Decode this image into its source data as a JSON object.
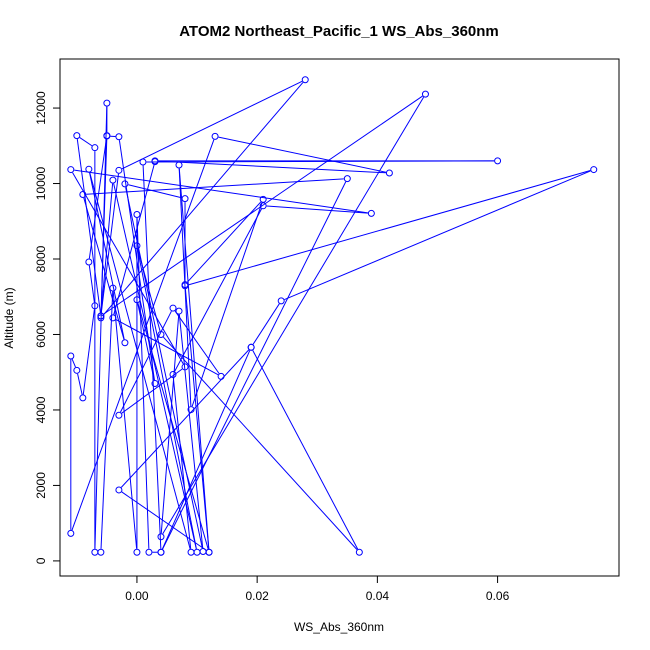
{
  "chart_data": {
    "type": "line",
    "title": "ATOM2 Northeast_Pacific_1 WS_Abs_360nm",
    "xlabel": "WS_Abs_360nm",
    "ylabel": "Altitude (m)",
    "xlim": [
      -0.0128,
      0.0802
    ],
    "ylim": [
      -400,
      13300
    ],
    "x_ticks": [
      0.0,
      0.02,
      0.04,
      0.06
    ],
    "x_tick_labels": [
      "0.00",
      "0.02",
      "0.04",
      "0.06"
    ],
    "y_ticks": [
      0,
      2000,
      4000,
      6000,
      8000,
      10000,
      12000
    ],
    "y_tick_labels": [
      "0",
      "2000",
      "4000",
      "6000",
      "8000",
      "10000",
      "12000"
    ],
    "grid": false,
    "series": [
      {
        "color": "#0000ff",
        "marker": "open-circle",
        "points": [
          {
            "x": -0.006,
            "y": 230
          },
          {
            "x": -0.004,
            "y": 7230
          },
          {
            "x": 0.0,
            "y": 230
          },
          {
            "x": 0.0,
            "y": 9180
          },
          {
            "x": 0.002,
            "y": 230
          },
          {
            "x": 0.004,
            "y": 230
          },
          {
            "x": 0.001,
            "y": 10570
          },
          {
            "x": 0.06,
            "y": 10600
          },
          {
            "x": 0.003,
            "y": 10600
          },
          {
            "x": 0.042,
            "y": 10280
          },
          {
            "x": 0.013,
            "y": 11250
          },
          {
            "x": -0.011,
            "y": 730
          },
          {
            "x": -0.011,
            "y": 5430
          },
          {
            "x": -0.01,
            "y": 5050
          },
          {
            "x": -0.009,
            "y": 4320
          },
          {
            "x": -0.007,
            "y": 6760
          },
          {
            "x": -0.008,
            "y": 7920
          },
          {
            "x": -0.005,
            "y": 11270
          },
          {
            "x": -0.005,
            "y": 12130
          },
          {
            "x": -0.007,
            "y": 230
          },
          {
            "x": -0.007,
            "y": 10950
          },
          {
            "x": -0.01,
            "y": 11270
          },
          {
            "x": -0.006,
            "y": 6490
          },
          {
            "x": -0.003,
            "y": 10350
          },
          {
            "x": 0.028,
            "y": 12750
          },
          {
            "x": -0.006,
            "y": 6440
          },
          {
            "x": -0.005,
            "y": 11260
          },
          {
            "x": -0.003,
            "y": 11240
          },
          {
            "x": 0.003,
            "y": 4700
          },
          {
            "x": 0.0,
            "y": 6920
          },
          {
            "x": 0.012,
            "y": 230
          },
          {
            "x": 0.008,
            "y": 7320
          },
          {
            "x": 0.021,
            "y": 9580
          },
          {
            "x": 0.009,
            "y": 4010
          },
          {
            "x": 0.007,
            "y": 10490
          },
          {
            "x": 0.012,
            "y": 230
          },
          {
            "x": -0.003,
            "y": 1880
          },
          {
            "x": 0.019,
            "y": 5660
          },
          {
            "x": 0.037,
            "y": 230
          },
          {
            "x": 0.004,
            "y": 6000
          },
          {
            "x": 0.0,
            "y": 8350
          },
          {
            "x": 0.01,
            "y": 230
          },
          {
            "x": -0.004,
            "y": 10090
          },
          {
            "x": -0.006,
            "y": 6490
          },
          {
            "x": 0.048,
            "y": 12370
          },
          {
            "x": 0.004,
            "y": 640
          },
          {
            "x": 0.007,
            "y": 6620
          },
          {
            "x": 0.011,
            "y": 250
          },
          {
            "x": -0.002,
            "y": 9990
          },
          {
            "x": 0.008,
            "y": 9600
          },
          {
            "x": 0.008,
            "y": 7290
          },
          {
            "x": 0.076,
            "y": 10370
          },
          {
            "x": 0.024,
            "y": 6890
          },
          {
            "x": 0.019,
            "y": 5660
          },
          {
            "x": 0.004,
            "y": 230
          },
          {
            "x": 0.035,
            "y": 10130
          },
          {
            "x": -0.009,
            "y": 9710
          },
          {
            "x": -0.002,
            "y": 5780
          },
          {
            "x": -0.008,
            "y": 10380
          },
          {
            "x": 0.009,
            "y": 230
          },
          {
            "x": 0.006,
            "y": 4940
          },
          {
            "x": 0.021,
            "y": 9410
          },
          {
            "x": 0.039,
            "y": 9210
          },
          {
            "x": -0.011,
            "y": 10370
          },
          {
            "x": 0.008,
            "y": 5140
          },
          {
            "x": -0.003,
            "y": 3860
          },
          {
            "x": 0.006,
            "y": 6700
          },
          {
            "x": 0.014,
            "y": 4890
          },
          {
            "x": -0.004,
            "y": 6440
          },
          {
            "x": 0.003,
            "y": 10580
          }
        ]
      }
    ]
  }
}
